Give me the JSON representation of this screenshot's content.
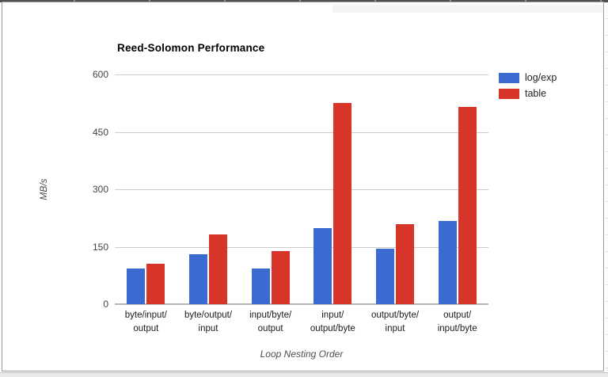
{
  "page": {
    "background": "#ffffff",
    "frame_border_color": "#9b9b9b",
    "top_bar_color": "#4f4f4f"
  },
  "chart_data": {
    "type": "bar",
    "title": "Reed-Solomon Performance",
    "xlabel": "Loop Nesting Order",
    "ylabel": "MB/s",
    "categories": [
      "byte/input/\noutput",
      "byte/output/\ninput",
      "input/byte/\noutput",
      "input/\noutput/byte",
      "output/byte/\ninput",
      "output/\ninput/byte"
    ],
    "series": [
      {
        "name": "log/exp",
        "color": "#3b6bd1",
        "values": [
          93,
          130,
          93,
          199,
          145,
          218
        ]
      },
      {
        "name": "table",
        "color": "#d8352a",
        "values": [
          105,
          182,
          139,
          525,
          209,
          515
        ]
      }
    ],
    "yticks": [
      0,
      150,
      300,
      450,
      600
    ],
    "ylim": [
      0,
      600
    ],
    "grid": true,
    "legend_position": "right",
    "colors": {
      "gridline": "#cccccc",
      "baseline": "#b5b5b5",
      "tick_label": "#444444",
      "category_label": "#1a1a1a",
      "axis_title": "#4d4d4d",
      "title": "#000000"
    }
  }
}
